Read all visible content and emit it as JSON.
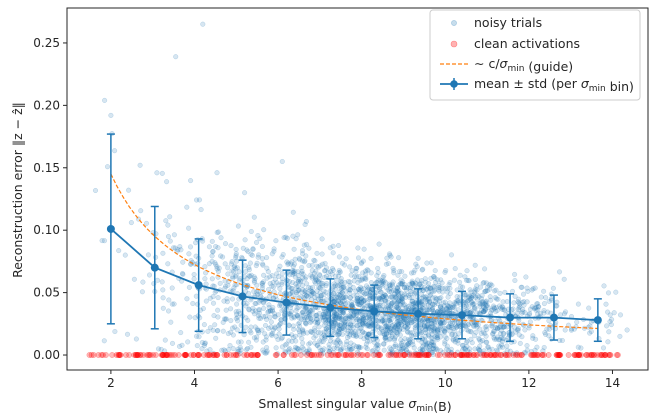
{
  "chart_data": {
    "type": "scatter",
    "xlabel": "Smallest singular value σmin(B)",
    "ylabel": "Reconstruction error ‖z − ẑ‖",
    "xlim": [
      0.95,
      14.85
    ],
    "ylim": [
      -0.012,
      0.278
    ],
    "xticks": [
      2,
      4,
      6,
      8,
      10,
      12,
      14
    ],
    "xtick_labels": [
      "2",
      "4",
      "6",
      "8",
      "10",
      "12",
      "14"
    ],
    "yticks": [
      0.0,
      0.05,
      0.1,
      0.15,
      0.2,
      0.25
    ],
    "ytick_labels": [
      "0.00",
      "0.05",
      "0.10",
      "0.15",
      "0.20",
      "0.25"
    ],
    "colors": {
      "noisy": "#1f77b4",
      "clean": "#ff0000",
      "guide": "#ff7f0e",
      "mean": "#1f77b4"
    },
    "legend_position": "top-right",
    "legend": [
      {
        "key": "noisy",
        "label": "noisy trials"
      },
      {
        "key": "clean",
        "label": "clean activations"
      },
      {
        "key": "guide",
        "label": "∼ c/σmin (guide)"
      },
      {
        "key": "mean",
        "label": "mean ± std (per σmin bin)"
      }
    ],
    "series": [
      {
        "name": "mean ± std (per σmin bin)",
        "x": [
          2.0,
          3.05,
          4.1,
          5.15,
          6.2,
          7.25,
          8.3,
          9.35,
          10.4,
          11.55,
          12.6,
          13.65
        ],
        "mean": [
          0.101,
          0.07,
          0.056,
          0.047,
          0.042,
          0.038,
          0.035,
          0.033,
          0.032,
          0.03,
          0.03,
          0.028
        ],
        "std": [
          0.076,
          0.049,
          0.037,
          0.029,
          0.026,
          0.023,
          0.021,
          0.02,
          0.019,
          0.019,
          0.018,
          0.017
        ]
      },
      {
        "name": "∼ c/σmin (guide)",
        "x_range": [
          2.0,
          13.65
        ],
        "c": 0.29
      },
      {
        "name": "noisy trials",
        "note": "about 3000 scattered points, denser between σmin 6 and 11, mostly in 0–0.1",
        "outliers": [
          [
            1.85,
            0.204
          ],
          [
            2.0,
            0.192
          ],
          [
            3.55,
            0.239
          ],
          [
            4.2,
            0.265
          ],
          [
            2.7,
            0.152
          ],
          [
            3.1,
            0.146
          ],
          [
            5.2,
            0.13
          ],
          [
            6.1,
            0.155
          ]
        ]
      },
      {
        "name": "clean activations",
        "x_range": [
          1.45,
          14.2
        ],
        "y": 0.0
      }
    ]
  }
}
